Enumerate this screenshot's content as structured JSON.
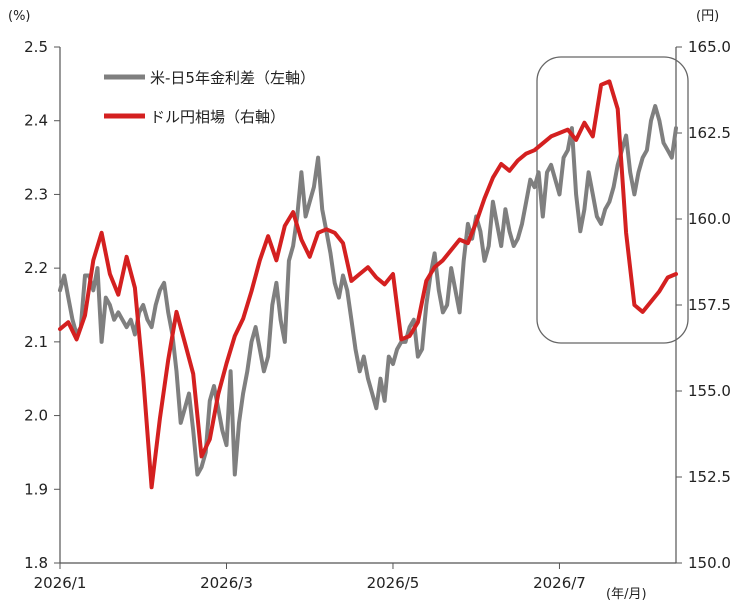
{
  "chart_data": {
    "type": "line",
    "title": "",
    "left_unit": "(%)",
    "right_unit": "(円)",
    "x_unit": "(年/月)",
    "x_ticks": [
      "2026/1",
      "2026/3",
      "2026/5",
      "2026/7"
    ],
    "x_tick_positions": [
      0,
      40,
      80,
      120
    ],
    "y_left": {
      "lim": [
        1.8,
        2.5
      ],
      "ticks": [
        "1.8",
        "1.9",
        "2.0",
        "2.1",
        "2.2",
        "2.3",
        "2.4",
        "2.5"
      ]
    },
    "y_right": {
      "lim": [
        150.0,
        165.0
      ],
      "ticks": [
        "150.0",
        "152.5",
        "155.0",
        "157.5",
        "160.0",
        "162.5",
        "165.0"
      ]
    },
    "legend_position": "top-left",
    "series": [
      {
        "name": "米-日5年金利差（左軸）",
        "axis": "left",
        "color": "#7f7f7f",
        "x": [
          0,
          1,
          2,
          3,
          4,
          5,
          6,
          7,
          8,
          9,
          10,
          11,
          12,
          13,
          14,
          15,
          16,
          17,
          18,
          19,
          20,
          21,
          22,
          23,
          24,
          25,
          26,
          27,
          28,
          29,
          30,
          31,
          32,
          33,
          34,
          35,
          36,
          37,
          38,
          39,
          40,
          41,
          42,
          43,
          44,
          45,
          46,
          47,
          48,
          49,
          50,
          51,
          52,
          53,
          54,
          55,
          56,
          57,
          58,
          59,
          60,
          61,
          62,
          63,
          64,
          65,
          66,
          67,
          68,
          69,
          70,
          71,
          72,
          73,
          74,
          75,
          76,
          77,
          78,
          79,
          80,
          81,
          82,
          83,
          84,
          85,
          86,
          87,
          88,
          89,
          90,
          91,
          92,
          93,
          94,
          95,
          96,
          97,
          98,
          99,
          100,
          101,
          102,
          103,
          104,
          105,
          106,
          107,
          108,
          109,
          110,
          111,
          112,
          113,
          114,
          115,
          116,
          117,
          118,
          119,
          120,
          121,
          122,
          123,
          124,
          125,
          126,
          127,
          128,
          129,
          130,
          131,
          132,
          133,
          134,
          135,
          136,
          137,
          138,
          139,
          140,
          141,
          142,
          143,
          144,
          145,
          146,
          147,
          148
        ],
        "values": [
          2.17,
          2.19,
          2.16,
          2.13,
          2.11,
          2.12,
          2.19,
          2.19,
          2.17,
          2.2,
          2.1,
          2.16,
          2.15,
          2.13,
          2.14,
          2.13,
          2.12,
          2.13,
          2.11,
          2.14,
          2.15,
          2.13,
          2.12,
          2.15,
          2.17,
          2.18,
          2.14,
          2.11,
          2.06,
          1.99,
          2.01,
          2.03,
          1.98,
          1.92,
          1.93,
          1.95,
          2.02,
          2.04,
          2.01,
          1.98,
          1.96,
          2.06,
          1.92,
          1.99,
          2.03,
          2.06,
          2.1,
          2.12,
          2.09,
          2.06,
          2.08,
          2.15,
          2.18,
          2.13,
          2.1,
          2.21,
          2.23,
          2.27,
          2.33,
          2.27,
          2.29,
          2.31,
          2.35,
          2.28,
          2.25,
          2.22,
          2.18,
          2.16,
          2.19,
          2.17,
          2.13,
          2.09,
          2.06,
          2.08,
          2.05,
          2.03,
          2.01,
          2.05,
          2.02,
          2.08,
          2.07,
          2.09,
          2.1,
          2.1,
          2.12,
          2.13,
          2.08,
          2.09,
          2.15,
          2.19,
          2.22,
          2.17,
          2.14,
          2.15,
          2.2,
          2.17,
          2.14,
          2.21,
          2.26,
          2.24,
          2.27,
          2.25,
          2.21,
          2.23,
          2.29,
          2.26,
          2.23,
          2.28,
          2.25,
          2.23,
          2.24,
          2.26,
          2.29,
          2.32,
          2.31,
          2.33,
          2.27,
          2.33,
          2.34,
          2.32,
          2.3,
          2.35,
          2.36,
          2.39,
          2.3,
          2.25,
          2.28,
          2.33,
          2.3,
          2.27,
          2.26,
          2.28,
          2.29,
          2.31,
          2.34,
          2.36,
          2.38,
          2.33,
          2.3,
          2.33,
          2.35,
          2.36,
          2.4,
          2.42,
          2.4,
          2.37,
          2.36,
          2.35,
          2.39
        ]
      },
      {
        "name": "ドル円相場（右軸）",
        "axis": "right",
        "color": "#d42020",
        "x": [
          0,
          2,
          4,
          6,
          8,
          10,
          12,
          14,
          16,
          18,
          20,
          22,
          24,
          26,
          28,
          30,
          32,
          34,
          36,
          38,
          40,
          42,
          44,
          46,
          48,
          50,
          52,
          54,
          56,
          58,
          60,
          62,
          64,
          66,
          68,
          70,
          72,
          74,
          76,
          78,
          80,
          82,
          84,
          86,
          88,
          90,
          92,
          94,
          96,
          98,
          100,
          102,
          104,
          106,
          108,
          110,
          112,
          114,
          116,
          118,
          120,
          122,
          124,
          126,
          128,
          130,
          132,
          134,
          136,
          138,
          140,
          142,
          144,
          146,
          148
        ],
        "values": [
          156.8,
          157.0,
          156.5,
          157.2,
          158.8,
          159.6,
          158.4,
          157.8,
          158.9,
          158.0,
          155.4,
          152.2,
          154.2,
          155.9,
          157.3,
          156.4,
          155.5,
          153.1,
          153.6,
          154.9,
          155.8,
          156.6,
          157.1,
          157.9,
          158.8,
          159.5,
          158.8,
          159.8,
          160.2,
          159.4,
          158.9,
          159.6,
          159.7,
          159.6,
          159.3,
          158.2,
          158.4,
          158.6,
          158.3,
          158.1,
          158.4,
          156.5,
          156.6,
          157.0,
          158.2,
          158.6,
          158.8,
          159.1,
          159.4,
          159.3,
          159.9,
          160.6,
          161.2,
          161.6,
          161.4,
          161.7,
          161.9,
          162.0,
          162.2,
          162.4,
          162.5,
          162.6,
          162.3,
          162.8,
          162.4,
          163.9,
          164.0,
          163.2,
          159.6,
          157.5,
          157.3,
          157.6,
          157.9,
          158.3,
          158.4
        ]
      }
    ]
  }
}
